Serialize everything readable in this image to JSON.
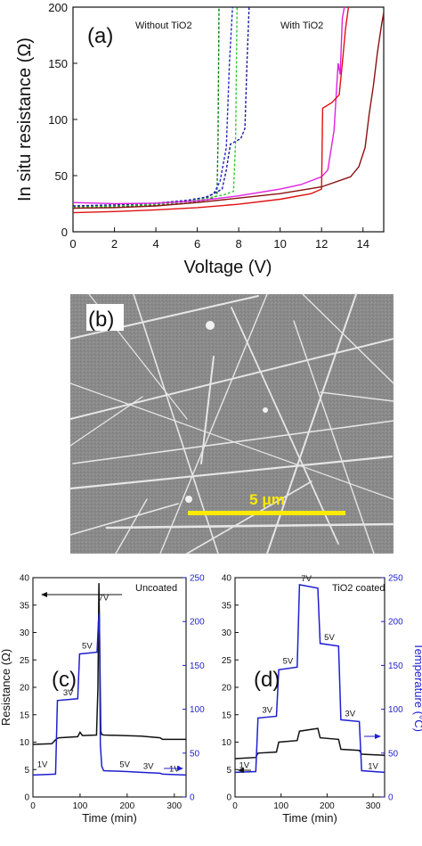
{
  "chart_data": [
    {
      "id": "a",
      "type": "line",
      "panel_label": "(a)",
      "xlabel": "Voltage (V)",
      "ylabel": "In situ resistance (Ω)",
      "xlim": [
        0,
        15
      ],
      "ylim": [
        0,
        200
      ],
      "xticks": [
        0,
        2,
        4,
        6,
        8,
        10,
        12,
        14
      ],
      "yticks": [
        0,
        50,
        100,
        150,
        200
      ],
      "annotations": [
        "Without TiO2",
        "With TiO2"
      ],
      "series": [
        {
          "color": "#0b7d0b",
          "style": "dashed",
          "x": [
            0,
            2,
            4,
            5.5,
            6.5,
            6.95,
            7.0,
            7.05
          ],
          "y": [
            21,
            22,
            23.5,
            25.5,
            28.5,
            32,
            80,
            200
          ]
        },
        {
          "color": "#2727c8",
          "style": "dashed",
          "x": [
            0,
            2,
            4,
            5.5,
            6.3,
            6.8,
            7.1,
            7.4,
            7.55,
            7.7
          ],
          "y": [
            22,
            23,
            24.5,
            27,
            30,
            34,
            45,
            75,
            150,
            200
          ]
        },
        {
          "color": "#36c836",
          "style": "dashed",
          "x": [
            0,
            2,
            4,
            5.5,
            6.5,
            7.3,
            7.75,
            7.85,
            7.92
          ],
          "y": [
            22,
            23,
            24.5,
            27,
            30,
            33,
            36,
            80,
            200
          ]
        },
        {
          "color": "#1a1a9e",
          "style": "dashed",
          "x": [
            0,
            2,
            4,
            5.5,
            6.5,
            7.2,
            7.4,
            7.6,
            7.8,
            8.1,
            8.3,
            8.4,
            8.5
          ],
          "y": [
            23,
            24,
            25.5,
            28,
            31,
            38,
            55,
            78,
            80,
            83,
            92,
            150,
            200
          ]
        },
        {
          "color": "#e020e0",
          "style": "solid",
          "x": [
            0,
            2,
            4,
            6,
            8,
            10,
            11,
            12,
            12.3,
            12.6,
            12.8,
            12.9,
            13.0,
            13.1
          ],
          "y": [
            26,
            25,
            25.5,
            27.5,
            32,
            38,
            42,
            49,
            55,
            90,
            150,
            140,
            190,
            200
          ]
        },
        {
          "color": "#e01010",
          "style": "solid",
          "x": [
            0,
            2,
            4,
            6,
            8,
            10,
            11.5,
            12.0,
            12.05,
            12.5,
            12.85,
            13.0,
            13.15,
            13.3
          ],
          "y": [
            17,
            18,
            19.5,
            21.5,
            24.5,
            29,
            34,
            38,
            110,
            115,
            122,
            150,
            180,
            200
          ]
        },
        {
          "color": "#8b1010",
          "style": "solid",
          "x": [
            0,
            2,
            4,
            6,
            8,
            10,
            12,
            13.4,
            13.8,
            14.1,
            14.3,
            14.5,
            14.7,
            14.9,
            15.0
          ],
          "y": [
            21,
            21.5,
            23,
            26,
            30,
            34,
            40,
            49,
            58,
            75,
            105,
            130,
            160,
            185,
            195
          ]
        }
      ]
    },
    {
      "id": "b",
      "type": "image",
      "panel_label": "(b)",
      "scale_bar": "5 μm"
    },
    {
      "id": "c",
      "type": "line",
      "panel_label": "(c)",
      "title": "Uncoated",
      "xlabel": "Time (min)",
      "ylabel": "Resistance (Ω)",
      "y2label": "",
      "xlim": [
        0,
        325
      ],
      "ylim": [
        0,
        40
      ],
      "y2lim": [
        0,
        250
      ],
      "xticks": [
        0,
        100,
        200,
        300
      ],
      "yticks": [
        0,
        5,
        10,
        15,
        20,
        25,
        30,
        35,
        40
      ],
      "y2ticks": [
        0,
        50,
        100,
        150,
        200,
        250
      ],
      "step_labels": [
        "1V",
        "3V",
        "5V",
        "7V",
        "5V",
        "3V",
        "1V"
      ],
      "series": [
        {
          "name": "Resistance",
          "axis": "left",
          "color": "#111111",
          "x": [
            0,
            40,
            50,
            55,
            95,
            100,
            105,
            135,
            138,
            140,
            142,
            144,
            146,
            150,
            230,
            270,
            275,
            325
          ],
          "y": [
            9.6,
            9.7,
            10.6,
            10.8,
            11.0,
            11.8,
            11.2,
            11.3,
            20,
            39,
            25,
            12,
            11.4,
            11.3,
            11.1,
            10.8,
            10.5,
            10.5
          ]
        },
        {
          "name": "Temperature",
          "axis": "right",
          "color": "#1f1fcf",
          "x": [
            0,
            48,
            52,
            95,
            99,
            136,
            139,
            141,
            143,
            146,
            150,
            200,
            230,
            270,
            275,
            325
          ],
          "y": [
            25,
            26,
            110,
            112,
            163,
            165,
            200,
            210,
            60,
            35,
            30,
            29,
            28,
            27,
            26,
            25
          ]
        }
      ]
    },
    {
      "id": "d",
      "type": "line",
      "panel_label": "(d)",
      "title": "TiO2 coated",
      "xlabel": "Time (min)",
      "ylabel": "",
      "y2label": "Temperature (°C)",
      "xlim": [
        0,
        325
      ],
      "ylim": [
        0,
        40
      ],
      "y2lim": [
        0,
        250
      ],
      "xticks": [
        0,
        100,
        200,
        300
      ],
      "yticks": [
        0,
        5,
        10,
        15,
        20,
        25,
        30,
        35,
        40
      ],
      "y2ticks": [
        0,
        50,
        100,
        150,
        200,
        250
      ],
      "step_labels": [
        "1V",
        "3V",
        "5V",
        "7V",
        "5V",
        "3V",
        "1V"
      ],
      "series": [
        {
          "name": "Resistance",
          "axis": "left",
          "color": "#111111",
          "x": [
            0,
            45,
            50,
            90,
            95,
            135,
            140,
            180,
            185,
            225,
            230,
            270,
            275,
            325
          ],
          "y": [
            7.0,
            7.2,
            8.0,
            8.2,
            10.0,
            10.3,
            12.0,
            12.5,
            10.8,
            10.5,
            8.7,
            8.5,
            7.8,
            7.6
          ]
        },
        {
          "name": "Temperature",
          "axis": "right",
          "color": "#1f1fcf",
          "x": [
            0,
            45,
            50,
            90,
            95,
            135,
            140,
            180,
            185,
            225,
            230,
            270,
            275,
            325
          ],
          "y": [
            28,
            29,
            90,
            92,
            145,
            148,
            242,
            238,
            175,
            172,
            88,
            86,
            30,
            28
          ]
        }
      ]
    }
  ]
}
